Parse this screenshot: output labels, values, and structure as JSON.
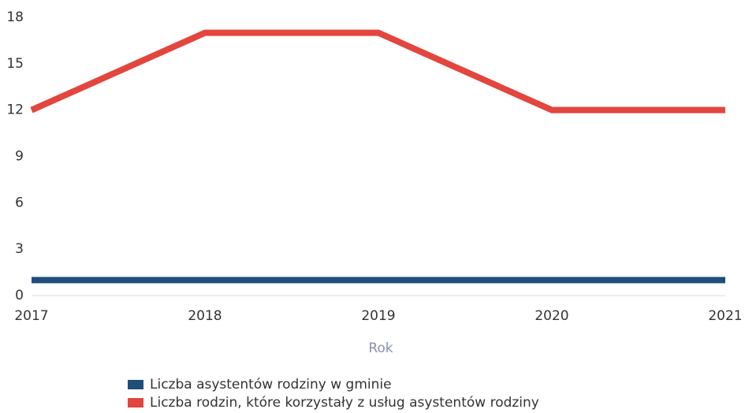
{
  "chart_data": {
    "type": "line",
    "categories": [
      "2017",
      "2018",
      "2019",
      "2020",
      "2021"
    ],
    "series": [
      {
        "name": "Liczba asystentów rodziny w gminie",
        "color": "#1f4e79",
        "values": [
          1,
          1,
          1,
          1,
          1
        ]
      },
      {
        "name": "Liczba rodzin, które korzystały z usług asystentów rodziny",
        "color": "#e2463e",
        "values": [
          12,
          17,
          17,
          12,
          12
        ]
      }
    ],
    "x_label": "Rok",
    "ylim": [
      0,
      18
    ],
    "yticks": [
      0,
      3,
      6,
      9,
      12,
      15,
      18
    ],
    "grid": false
  }
}
